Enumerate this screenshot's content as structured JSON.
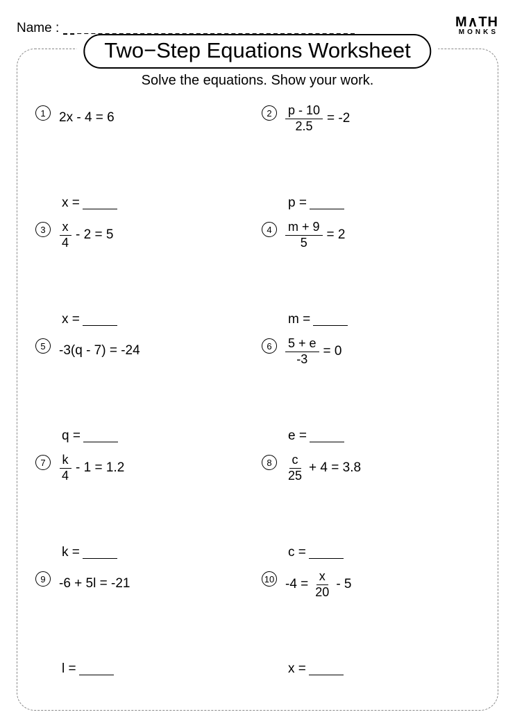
{
  "header": {
    "name_label": "Name :",
    "logo_top": "M∧TH",
    "logo_bottom": "MONKS"
  },
  "title": "Two−Step Equations Worksheet",
  "subtitle": "Solve the equations. Show your work.",
  "problems": [
    {
      "n": "1",
      "type": "plain",
      "expr": "2x - 4 = 6",
      "ans_var": "x"
    },
    {
      "n": "2",
      "type": "fracEq",
      "num": "p - 10",
      "den": "2.5",
      "rest": "= -2",
      "ans_var": "p"
    },
    {
      "n": "3",
      "type": "fracOp",
      "num": "x",
      "den": "4",
      "rest": "- 2 = 5",
      "ans_var": "x"
    },
    {
      "n": "4",
      "type": "fracEq",
      "num": "m + 9",
      "den": "5",
      "rest": "= 2",
      "ans_var": "m"
    },
    {
      "n": "5",
      "type": "plain",
      "expr": "-3(q - 7) = -24",
      "ans_var": "q"
    },
    {
      "n": "6",
      "type": "fracEq",
      "num": "5 + e",
      "den": "-3",
      "rest": "= 0",
      "ans_var": "e"
    },
    {
      "n": "7",
      "type": "fracOp",
      "num": "k",
      "den": "4",
      "rest": "- 1 = 1.2",
      "ans_var": "k"
    },
    {
      "n": "8",
      "type": "fracOp",
      "num": "c",
      "den": "25",
      "rest": "+ 4 = 3.8",
      "ans_var": "c"
    },
    {
      "n": "9",
      "type": "plain",
      "expr": "-6 + 5l = -21",
      "ans_var": "l"
    },
    {
      "n": "10",
      "type": "eqFrac",
      "pre": "-4 =",
      "num": "x",
      "den": "20",
      "rest": "- 5",
      "ans_var": "x"
    }
  ]
}
